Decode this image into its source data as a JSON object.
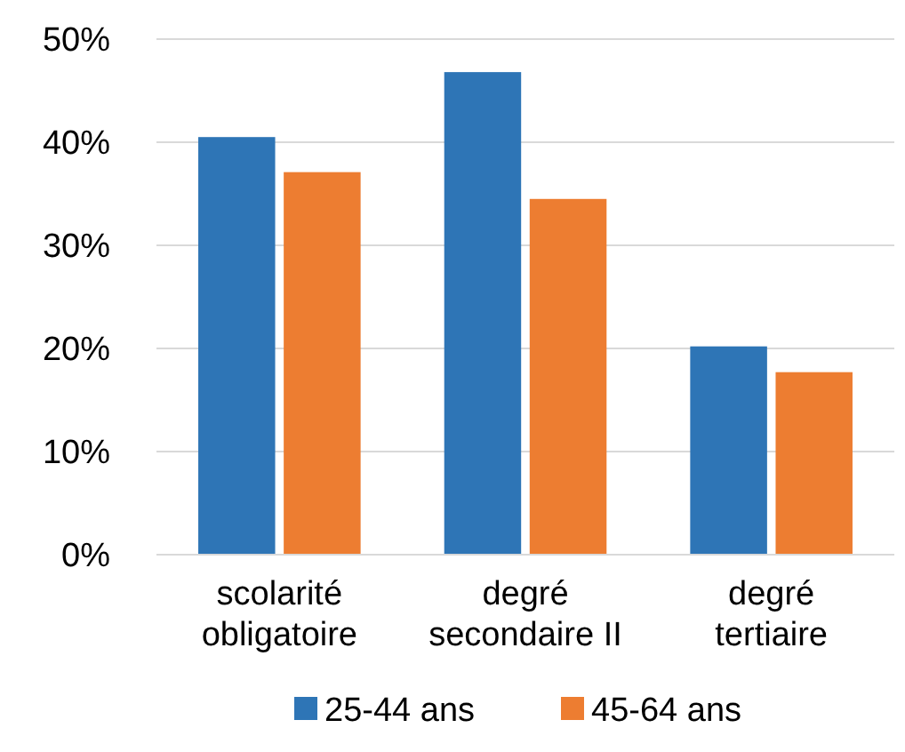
{
  "chart_data": {
    "type": "bar",
    "categories": [
      "scolarité\nobligatoire",
      "degré\nsecondaire II",
      "degré\ntertiaire"
    ],
    "series": [
      {
        "name": "25-44 ans",
        "color": "#2e75b6",
        "values": [
          40.5,
          46.8,
          20.2
        ]
      },
      {
        "name": "45-64 ans",
        "color": "#ed7d31",
        "values": [
          37.1,
          34.5,
          17.7
        ]
      }
    ],
    "ylim": [
      0,
      50
    ],
    "yticks": [
      {
        "value": 0,
        "label": "0%"
      },
      {
        "value": 10,
        "label": "10%"
      },
      {
        "value": 20,
        "label": "20%"
      },
      {
        "value": 30,
        "label": "30%"
      },
      {
        "value": 40,
        "label": "40%"
      },
      {
        "value": 50,
        "label": "50%"
      }
    ],
    "grid": "y",
    "legend": "bottom"
  }
}
